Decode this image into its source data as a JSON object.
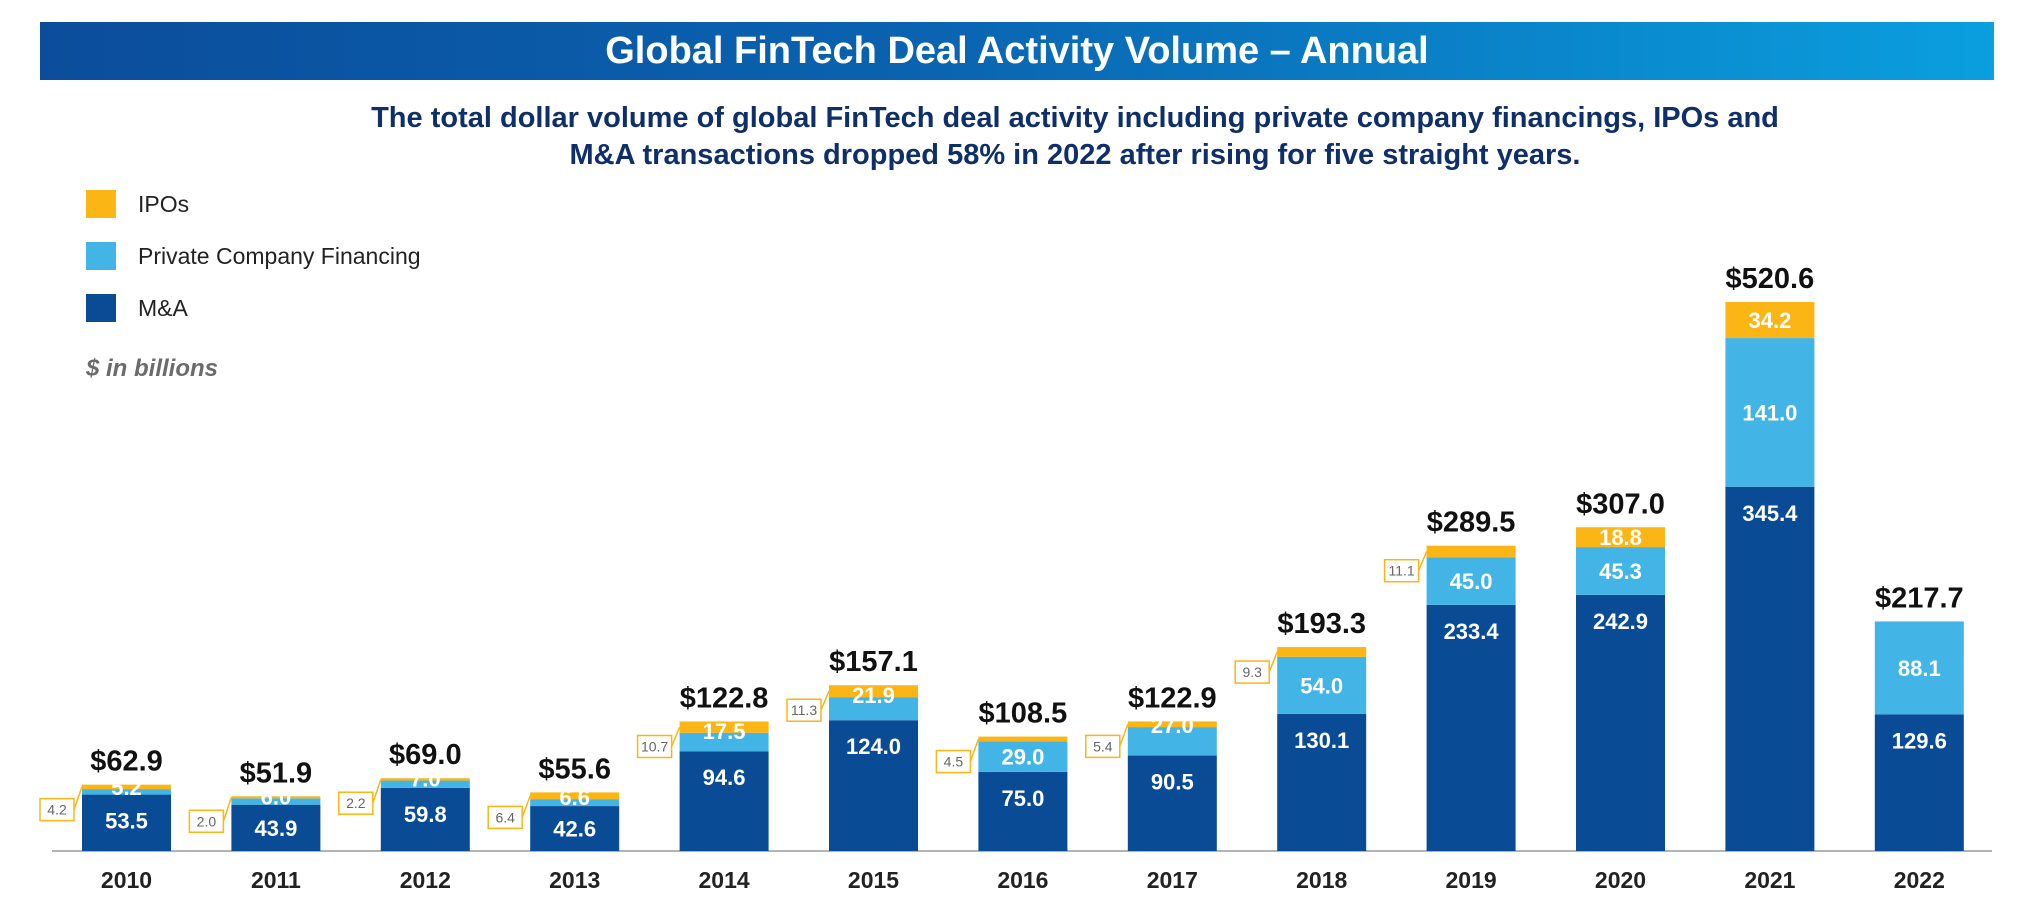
{
  "header": {
    "title": "Global FinTech Deal Activity Volume – Annual",
    "subtitle_line1": "The total dollar volume of global FinTech deal activity including private company financings, IPOs and",
    "subtitle_line2": "M&A transactions dropped 58% in 2022 after rising for five straight years."
  },
  "legend": {
    "items": [
      {
        "label": "IPOs",
        "color": "#fbb515"
      },
      {
        "label": "Private Company Financing",
        "color": "#42b4e6"
      },
      {
        "label": "M&A",
        "color": "#0a4b96"
      }
    ],
    "units": "$ in billions"
  },
  "chart_data": {
    "type": "bar",
    "stacked": true,
    "categories": [
      "2010",
      "2011",
      "2012",
      "2013",
      "2014",
      "2015",
      "2016",
      "2017",
      "2018",
      "2019",
      "2020",
      "2021",
      "2022"
    ],
    "series": [
      {
        "name": "M&A",
        "color": "#0a4b96",
        "values": [
          53.5,
          43.9,
          59.8,
          42.6,
          94.6,
          124.0,
          75.0,
          90.5,
          130.1,
          233.4,
          242.9,
          345.4,
          129.6
        ]
      },
      {
        "name": "Private Company Financing",
        "color": "#42b4e6",
        "values": [
          5.2,
          6.0,
          7.0,
          6.6,
          17.5,
          21.9,
          29.0,
          27.0,
          54.0,
          45.0,
          45.3,
          141.0,
          88.1
        ]
      },
      {
        "name": "IPOs",
        "color": "#fbb515",
        "values": [
          4.2,
          2.0,
          2.2,
          6.4,
          10.7,
          11.3,
          4.5,
          5.4,
          9.3,
          11.1,
          18.8,
          34.2,
          0
        ]
      }
    ],
    "totals": [
      "$62.9",
      "$51.9",
      "$69.0",
      "$55.6",
      "$122.8",
      "$157.1",
      "$108.5",
      "$122.9",
      "$193.3",
      "$289.5",
      "$307.0",
      "$520.6",
      "$217.7"
    ],
    "ipo_labels_inside": [
      false,
      false,
      false,
      false,
      false,
      false,
      false,
      false,
      false,
      false,
      true,
      true,
      false
    ],
    "ylim": [
      0,
      520.6
    ],
    "grid": false,
    "legend_position": "top-left"
  }
}
